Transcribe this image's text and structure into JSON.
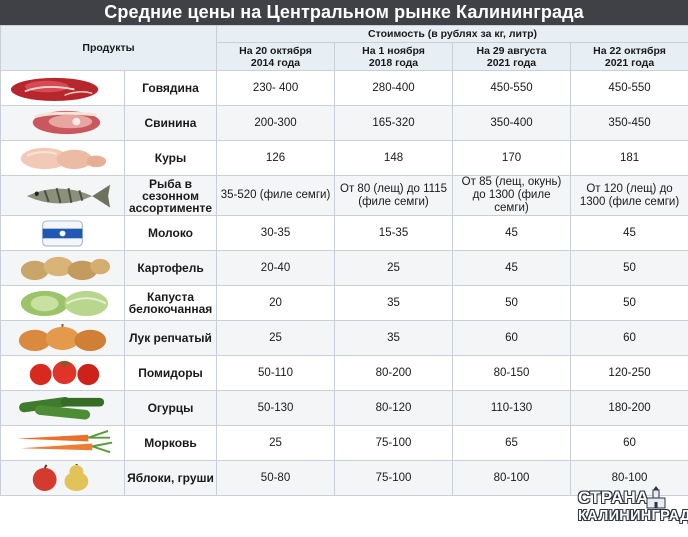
{
  "title": "Средние цены на Центральном рынке Калининграда",
  "header": {
    "products_label": "Продукты",
    "cost_label": "Стоимость (в рублях за кг, литр)",
    "dates": [
      {
        "line1": "На 20 октября",
        "line2": "2014 года"
      },
      {
        "line1": "На 1 ноября",
        "line2": "2018 года"
      },
      {
        "line1": "На 29 августа",
        "line2": "2021 года"
      },
      {
        "line1": "На 22 октября",
        "line2": "2021 года"
      }
    ]
  },
  "rows": [
    {
      "name": "Говядина",
      "values": [
        "230- 400",
        "280-400",
        "450-550",
        "450-550"
      ]
    },
    {
      "name": "Свинина",
      "values": [
        "200-300",
        "165-320",
        "350-400",
        "350-450"
      ]
    },
    {
      "name": "Куры",
      "values": [
        "126",
        "148",
        "170",
        "181"
      ]
    },
    {
      "name": "Рыба в сезонном ассортименте",
      "values": [
        "35-520 (филе семги)",
        "От 80 (лещ) до 1115 (филе семги)",
        "От 85 (лещ, окунь) до 1300 (филе семги)",
        "От 120 (лещ) до 1300 (филе семги)"
      ]
    },
    {
      "name": "Молоко",
      "values": [
        "30-35",
        "15-35",
        "45",
        "45"
      ]
    },
    {
      "name": "Картофель",
      "values": [
        "20-40",
        "25",
        "45",
        "50"
      ]
    },
    {
      "name": "Капуста белокочанная",
      "values": [
        "20",
        "35",
        "50",
        "50"
      ]
    },
    {
      "name": "Лук репчатый",
      "values": [
        "25",
        "35",
        "60",
        "60"
      ]
    },
    {
      "name": "Помидоры",
      "values": [
        "50-110",
        "80-200",
        "80-150",
        "120-250"
      ]
    },
    {
      "name": "Огурцы",
      "values": [
        "50-130",
        "80-120",
        "110-130",
        "180-200"
      ]
    },
    {
      "name": "Морковь",
      "values": [
        "25",
        "75-100",
        "65",
        "60"
      ]
    },
    {
      "name": "Яблоки, груши",
      "values": [
        "50-80",
        "75-100",
        "80-100",
        "80-100"
      ]
    }
  ],
  "logo": {
    "line1": "СТРАНА",
    "line2": "КАЛИНИНГРАД"
  },
  "icons": [
    "beef-icon",
    "pork-icon",
    "chicken-icon",
    "fish-icon",
    "milk-icon",
    "potato-icon",
    "cabbage-icon",
    "onion-icon",
    "tomato-icon",
    "cucumber-icon",
    "carrot-icon",
    "apple-pear-icon"
  ]
}
